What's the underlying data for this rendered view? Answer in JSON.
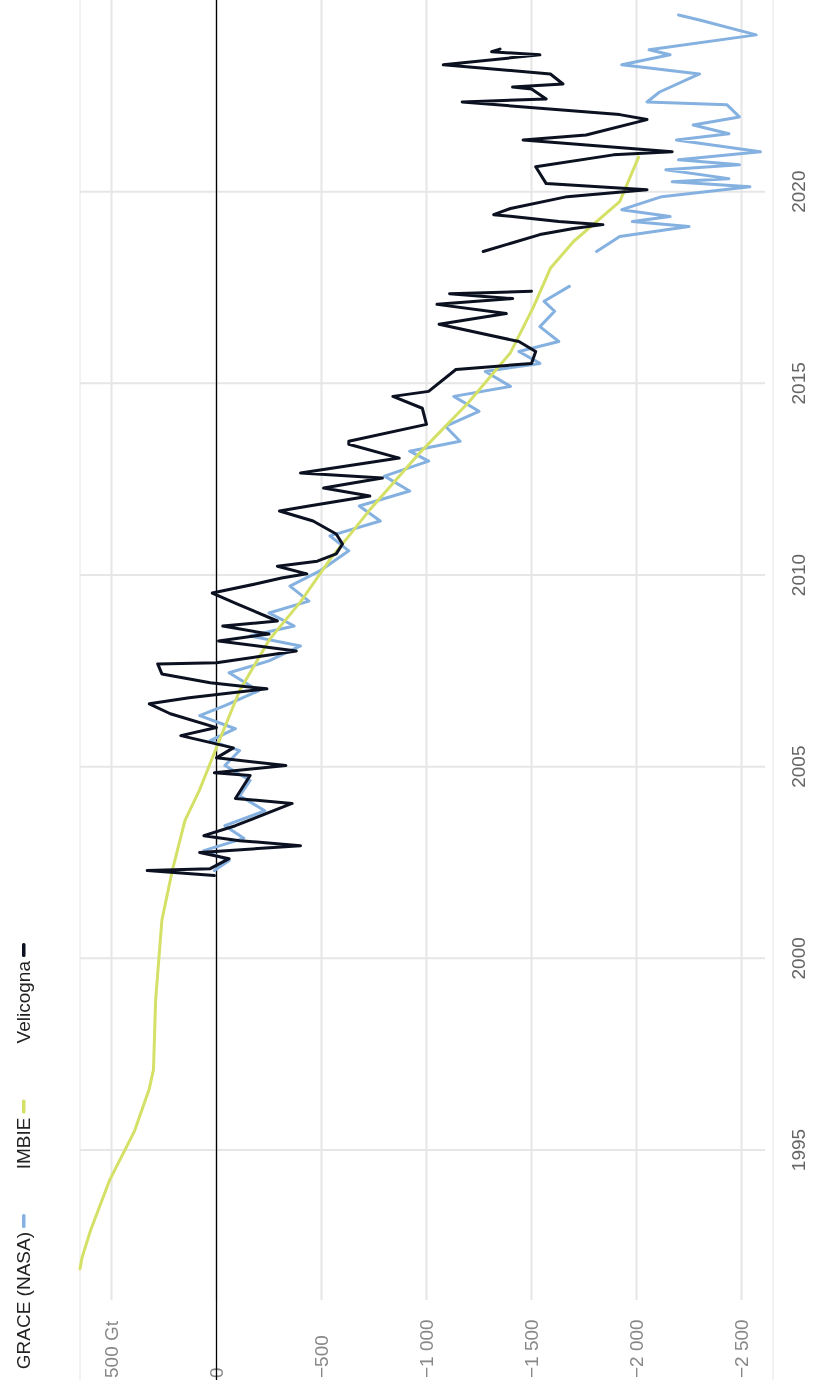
{
  "chart_data": {
    "type": "line",
    "xlim": [
      650,
      -2650
    ],
    "ylim": [
      1989,
      2025
    ],
    "yticks": [
      1995,
      2000,
      2005,
      2010,
      2015,
      2020
    ],
    "xticks": [
      {
        "value": 500,
        "label": "500 Gt"
      },
      0,
      {
        "value": -500,
        "label": "−500"
      },
      {
        "value": -1000,
        "label": "−1 000"
      },
      {
        "value": -1500,
        "label": "−1 500"
      },
      {
        "value": -2000,
        "label": "−2 000"
      },
      {
        "value": -2500,
        "label": "−2 500"
      }
    ],
    "grid": true,
    "legend": "bottom left",
    "line_style": "solid",
    "marker": "none",
    "ref_lines": [
      {
        "axis": "x",
        "value": 0,
        "color": "#000000"
      }
    ],
    "series": [
      {
        "name": "GRACE (NASA)",
        "color": "#85b1e1",
        "values": [
          2002.29,
          2002.55,
          2002.81,
          2003.13,
          2003.46,
          2003.85,
          2004.24,
          2004.64,
          2005.03,
          2005.42,
          2005.68,
          2005.99,
          2006.33,
          2006.59,
          2006.98,
          2007.45,
          2007.76,
          2008.15,
          2008.41,
          2008.67,
          2009.01,
          2009.32,
          2009.71,
          2010.1,
          2010.63,
          2011.02,
          2011.41,
          2011.8,
          2012.19,
          2012.58,
          2012.97,
          2013.23,
          2013.49,
          2013.88,
          2014.27,
          2014.66,
          2014.92,
          2015.31,
          2015.52,
          2015.83,
          2016.09,
          2016.48,
          2016.88,
          2017.14,
          2017.53,
          null,
          2018.44,
          2018.83,
          2019.09,
          2019.22,
          2019.35,
          2019.53,
          2019.87,
          2020.13,
          2020.26,
          2020.34,
          2020.57,
          2020.7,
          2020.83,
          2021.04,
          2021.35,
          2021.51,
          2021.74,
          2021.95,
          2022.27,
          2022.34,
          2022.6,
          2023.07,
          2023.31,
          2023.57,
          2023.7,
          2024.09,
          2024.48,
          2024.61
        ],
        "x": [
          10,
          -60,
          60,
          -130,
          -40,
          -230,
          -110,
          -160,
          -40,
          -110,
          30,
          -90,
          80,
          -40,
          -200,
          -60,
          -250,
          -400,
          -160,
          -370,
          -250,
          -440,
          -350,
          -490,
          -630,
          -540,
          -780,
          -680,
          -920,
          -800,
          -1010,
          -920,
          -1160,
          -1090,
          -1250,
          -1130,
          -1400,
          -1280,
          -1540,
          -1440,
          -1630,
          -1540,
          -1610,
          -1560,
          -1680,
          null,
          -1810,
          -1920,
          -2250,
          -1980,
          -2160,
          -1930,
          -2120,
          -2540,
          -2170,
          -2440,
          -2140,
          -2490,
          -2200,
          -2590,
          -2190,
          -2440,
          -2270,
          -2490,
          -2430,
          -2050,
          -2110,
          -2300,
          -1930,
          -2160,
          -2060,
          -2570,
          -2300,
          -2200
        ]
      },
      {
        "name": "IMBIE",
        "color": "#d4e066",
        "values": [
          1991.9,
          1992.2,
          1992.9,
          1994.2,
          1995.5,
          1996.6,
          1997.1,
          1998.9,
          2001,
          2002.3,
          2003.6,
          2004.4,
          2005.5,
          2006.98,
          2008.3,
          2009.3,
          2010.4,
          2011.7,
          2013.2,
          2014.5,
          2015.8,
          2017,
          2018,
          2018.7,
          2019.74,
          2020.9
        ],
        "x": [
          650,
          640,
          600,
          510,
          390,
          320,
          300,
          290,
          260,
          210,
          150,
          80,
          0,
          -110,
          -250,
          -400,
          -540,
          -730,
          -970,
          -1200,
          -1400,
          -1510,
          -1590,
          -1700,
          -1920,
          -2010
        ]
      },
      {
        "name": "Velicogna",
        "color": "#0b1120",
        "values": [
          2002.16,
          2002.29,
          2002.34,
          2002.6,
          2002.76,
          2002.94,
          2003.07,
          2003.2,
          2003.46,
          2004.04,
          2004.17,
          2004.77,
          2004.84,
          2005.03,
          2005.23,
          2005.49,
          2005.81,
          2006.02,
          2006.38,
          2006.64,
          2006.8,
          2007.03,
          2007.19,
          2007.42,
          2007.68,
          2007.71,
          2008.02,
          2008.28,
          2008.46,
          2008.67,
          2008.8,
          2009.24,
          2009.53,
          2009.77,
          2009.92,
          2010.03,
          2010.23,
          2010.36,
          2010.55,
          2010.81,
          2011.07,
          2011.41,
          2011.67,
          2011.8,
          2012.06,
          2012.27,
          2012.53,
          2012.66,
          2013.05,
          2013.41,
          2013.49,
          2013.93,
          2014.35,
          2014.66,
          2014.79,
          2015.36,
          2015.52,
          2015.83,
          2016.09,
          2016.54,
          2016.82,
          2017.06,
          2017.21,
          2017.34,
          2017.4,
          null,
          2018.44,
          2018.88,
          2019.04,
          2019.14,
          2019.22,
          2019.35,
          2019.4,
          2019.56,
          2019.87,
          2020.05,
          2020.21,
          2020.65,
          2020.96,
          2021.04,
          2021.35,
          2021.48,
          2021.88,
          2022.01,
          2022.34,
          2022.42,
          2022.68,
          2022.73,
          2022.81,
          2023.07,
          2023.31,
          2023.57,
          2023.65,
          2023.72
        ],
        "x": [
          10,
          330,
          30,
          -60,
          80,
          -400,
          -110,
          60,
          -90,
          -360,
          -90,
          -160,
          10,
          -330,
          0,
          -80,
          170,
          0,
          220,
          320,
          130,
          -240,
          30,
          260,
          280,
          0,
          -380,
          -10,
          -250,
          -30,
          -290,
          -100,
          20,
          -190,
          -310,
          -430,
          -290,
          -480,
          -570,
          -600,
          -570,
          -460,
          -300,
          -440,
          -730,
          -510,
          -790,
          -400,
          -870,
          -630,
          -630,
          -1000,
          -980,
          -840,
          -1010,
          -1140,
          -1500,
          -1520,
          -1440,
          -1060,
          -1380,
          -1050,
          -1410,
          -1110,
          -1500,
          null,
          -1270,
          -1540,
          -1700,
          -1840,
          -1630,
          -1410,
          -1320,
          -1400,
          -1670,
          -2050,
          -1570,
          -1520,
          -1890,
          -2170,
          -1460,
          -1760,
          -2050,
          -1920,
          -1170,
          -1570,
          -1500,
          -1410,
          -1650,
          -1590,
          -1080,
          -1540,
          -1310,
          -1350
        ]
      }
    ]
  }
}
